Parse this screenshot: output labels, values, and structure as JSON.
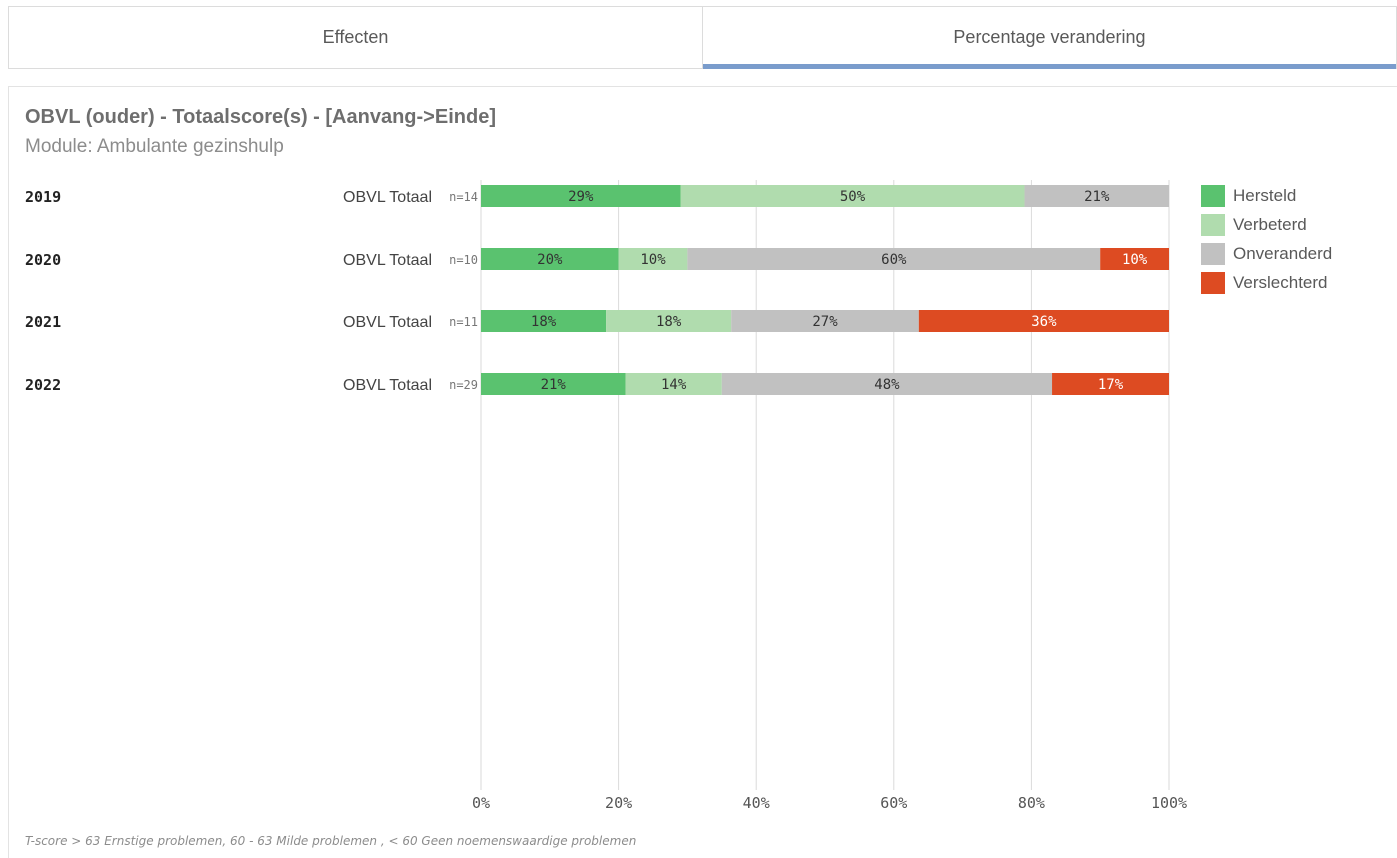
{
  "tabs": [
    {
      "label": "Effecten",
      "active": false
    },
    {
      "label": "Percentage verandering",
      "active": true
    }
  ],
  "chart_data": {
    "type": "bar",
    "orientation": "horizontal",
    "stacked": true,
    "title": "OBVL (ouder) - Totaalscore(s) - [Aanvang->Einde]",
    "subtitle": "Module: Ambulante gezinshulp",
    "categories": [
      "2019",
      "2020",
      "2021",
      "2022"
    ],
    "row_label": "OBVL Totaal",
    "n_labels": [
      "n=14",
      "n=10",
      "n=11",
      "n=29"
    ],
    "series": [
      {
        "name": "Hersteld",
        "color": "#5ac26f",
        "values": [
          29,
          20,
          18,
          21
        ],
        "labels": [
          "29%",
          "20%",
          "18%",
          "21%"
        ]
      },
      {
        "name": "Verbeterd",
        "color": "#b0dcae",
        "values": [
          50,
          10,
          18,
          14
        ],
        "labels": [
          "50%",
          "10%",
          "18%",
          "14%"
        ]
      },
      {
        "name": "Onveranderd",
        "color": "#c1c1c1",
        "values": [
          21,
          60,
          27,
          48
        ],
        "labels": [
          "21%",
          "60%",
          "27%",
          "48%"
        ]
      },
      {
        "name": "Verslechterd",
        "color": "#dd4b22",
        "values": [
          0,
          10,
          36,
          17
        ],
        "labels": [
          "",
          "10%",
          "36%",
          "17%"
        ]
      }
    ],
    "xlim": [
      0,
      100
    ],
    "xticks": [
      "0%",
      "20%",
      "40%",
      "60%",
      "80%",
      "100%"
    ],
    "grid": true,
    "legend_position": "right"
  },
  "footnote": "T-score > 63 Ernstige problemen, 60 - 63 Milde problemen , < 60 Geen noemenswaardige problemen"
}
